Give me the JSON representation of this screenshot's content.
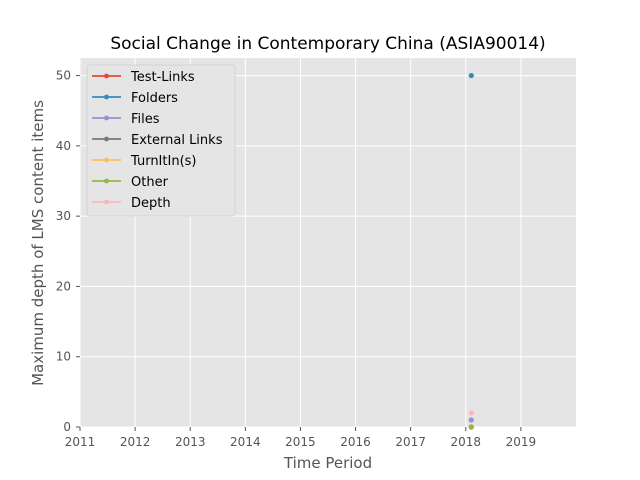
{
  "chart_data": {
    "type": "line",
    "title": "Social Change in Contemporary China (ASIA90014)",
    "xlabel": "Time Period",
    "ylabel": "Maximum depth of LMS content items",
    "xlim": [
      2011,
      2020
    ],
    "ylim": [
      0,
      52.5
    ],
    "x_ticks": [
      "2011",
      "2012",
      "2013",
      "2014",
      "2015",
      "2016",
      "2017",
      "2018",
      "2019"
    ],
    "y_ticks": [
      "0",
      "10",
      "20",
      "30",
      "40",
      "50"
    ],
    "grid": true,
    "legend_position": "top-left",
    "series": [
      {
        "name": "Test-Links",
        "color": "#E24A33",
        "x": [
          2018.1
        ],
        "y": [
          0
        ]
      },
      {
        "name": "Folders",
        "color": "#348ABD",
        "x": [
          2018.1
        ],
        "y": [
          50
        ]
      },
      {
        "name": "Files",
        "color": "#988ED5",
        "x": [
          2018.1
        ],
        "y": [
          1
        ]
      },
      {
        "name": "External Links",
        "color": "#777777",
        "x": [
          2018.1
        ],
        "y": [
          0
        ]
      },
      {
        "name": "TurnItIn(s)",
        "color": "#FBC15E",
        "x": [
          2018.1
        ],
        "y": [
          0
        ]
      },
      {
        "name": "Other",
        "color": "#8EBA42",
        "x": [
          2018.1
        ],
        "y": [
          0
        ]
      },
      {
        "name": "Depth",
        "color": "#FFB5B8",
        "x": [
          2018.1
        ],
        "y": [
          2
        ]
      }
    ]
  }
}
